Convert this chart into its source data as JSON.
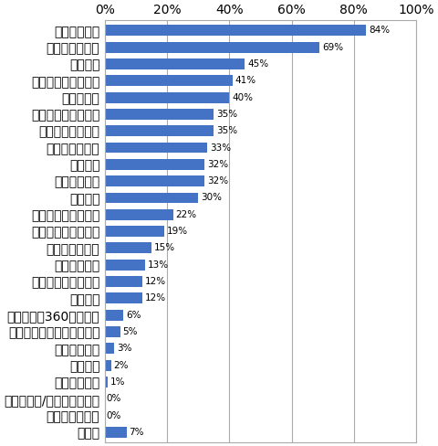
{
  "categories": [
    "マネジメント",
    "リーダーシップ",
    "目標管理",
    "チームビルディング",
    "コーチング",
    "コミュニケーション",
    "コンプライアンス",
    "メンタルヘルス",
    "意識改革",
    "ハラスメント",
    "財務知識",
    "モチベーション向上",
    "ロジカルシンキング",
    "ビジョン構築力",
    "個人情報関連",
    "ファシリテーション",
    "業務知識",
    "多面観察（360度評価）",
    "グローバルリーダーシップ",
    "アセスメント",
    "海外研修",
    "英語・外国語",
    "サバイバル/自然系メニュー",
    "特訓系メニュー",
    "その他"
  ],
  "values": [
    84,
    69,
    45,
    41,
    40,
    35,
    35,
    33,
    32,
    32,
    30,
    22,
    19,
    15,
    13,
    12,
    12,
    6,
    5,
    3,
    2,
    1,
    0,
    0,
    7
  ],
  "bar_color": "#4472c4",
  "background_color": "#ffffff",
  "xlim": [
    0,
    100
  ],
  "xtick_values": [
    0,
    20,
    40,
    60,
    80,
    100
  ],
  "xtick_labels": [
    "0%",
    "20%",
    "40%",
    "60%",
    "80%",
    "100%"
  ],
  "label_fontsize": 7.5,
  "value_fontsize": 7.5,
  "bar_height": 0.65
}
